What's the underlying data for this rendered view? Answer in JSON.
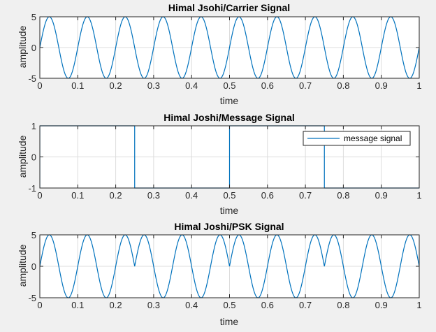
{
  "figure": {
    "background": "#f0f0f0",
    "axes_color": "#262626",
    "line_color": "#0072bd",
    "grid_color": "#dcdcdc"
  },
  "chart_data": [
    {
      "type": "line",
      "title": "Himal Jsohi/Carrier Signal",
      "xlabel": "time",
      "ylabel": "amplitude",
      "xlim": [
        0,
        1
      ],
      "ylim": [
        -5,
        5
      ],
      "xticks": [
        0,
        0.1,
        0.2,
        0.3,
        0.4,
        0.5,
        0.6,
        0.7,
        0.8,
        0.9,
        1
      ],
      "xtick_labels": [
        "0",
        "0.1",
        "0.2",
        "0.3",
        "0.4",
        "0.5",
        "0.6",
        "0.7",
        "0.8",
        "0.9",
        "1"
      ],
      "yticks": [
        -5,
        0,
        5
      ],
      "ytick_labels": [
        "-5",
        "0",
        "5"
      ],
      "grid": true,
      "series": [
        {
          "function": "5*sin(2*pi*10*t)",
          "amplitude": 5,
          "frequency": 10,
          "t_range": [
            0,
            1
          ]
        }
      ]
    },
    {
      "type": "line",
      "title": "Himal Joshi/Message Signal",
      "xlabel": "time",
      "ylabel": "amplitude",
      "xlim": [
        0,
        1
      ],
      "ylim": [
        -1,
        1
      ],
      "xticks": [
        0,
        0.1,
        0.2,
        0.3,
        0.4,
        0.5,
        0.6,
        0.7,
        0.8,
        0.9,
        1
      ],
      "xtick_labels": [
        "0",
        "0.1",
        "0.2",
        "0.3",
        "0.4",
        "0.5",
        "0.6",
        "0.7",
        "0.8",
        "0.9",
        "1"
      ],
      "yticks": [
        -1,
        0,
        1
      ],
      "ytick_labels": [
        "-1",
        "0",
        "1"
      ],
      "grid": true,
      "legend": {
        "position": "top-right",
        "entries": [
          "message signal"
        ]
      },
      "series": [
        {
          "name": "message signal",
          "x": [
            0,
            0,
            0.25,
            0.25,
            0.5,
            0.5,
            0.75,
            0.75,
            1
          ],
          "y": [
            -1,
            1,
            1,
            -1,
            -1,
            1,
            1,
            -1,
            -1
          ]
        }
      ]
    },
    {
      "type": "line",
      "title": "Himal Joshi/PSK Signal",
      "xlabel": "time",
      "ylabel": "amplitude",
      "xlim": [
        0,
        1
      ],
      "ylim": [
        -5,
        5
      ],
      "xticks": [
        0,
        0.1,
        0.2,
        0.3,
        0.4,
        0.5,
        0.6,
        0.7,
        0.8,
        0.9,
        1
      ],
      "xtick_labels": [
        "0",
        "0.1",
        "0.2",
        "0.3",
        "0.4",
        "0.5",
        "0.6",
        "0.7",
        "0.8",
        "0.9",
        "1"
      ],
      "yticks": [
        -5,
        0,
        5
      ],
      "ytick_labels": [
        "-5",
        "0",
        "5"
      ],
      "grid": true,
      "series": [
        {
          "function": "5*sin(2*pi*10*t) * sign(m(t)), phase inverts at each bit boundary",
          "amplitude": 5,
          "frequency": 10,
          "t_range": [
            0,
            1
          ],
          "phase_flips": [
            0.25,
            0.5,
            0.75
          ],
          "bits": [
            1,
            -1,
            1,
            -1
          ]
        }
      ]
    }
  ]
}
